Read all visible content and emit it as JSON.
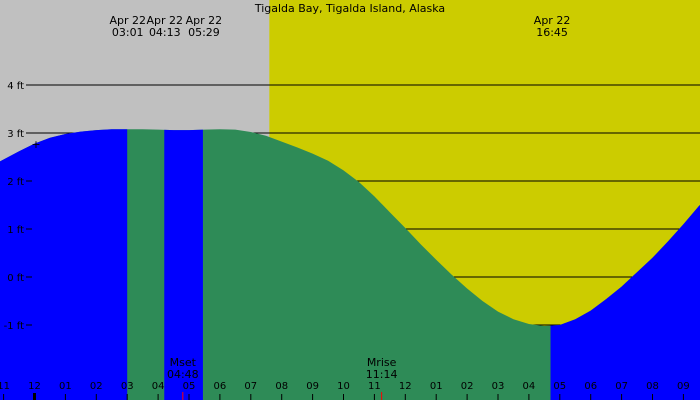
{
  "chart_data": {
    "type": "area",
    "title": "Tigalda Bay, Tigalda Island, Alaska",
    "ylim": [
      -2.0,
      5.0
    ],
    "y_ticks": [
      {
        "value": 4,
        "label": "4 ft"
      },
      {
        "value": 3,
        "label": "3 ft"
      },
      {
        "value": 2,
        "label": "2 ft"
      },
      {
        "value": 1,
        "label": "1 ft"
      },
      {
        "value": 0,
        "label": "0 ft"
      },
      {
        "value": -1,
        "label": "-1 ft"
      }
    ],
    "x_ticks": [
      "11",
      "12",
      "01",
      "02",
      "03",
      "04",
      "05",
      "06",
      "07",
      "08",
      "09",
      "10",
      "11",
      "12",
      "01",
      "02",
      "03",
      "04",
      "05",
      "06",
      "07",
      "08",
      "09"
    ],
    "tide_series": {
      "name": "",
      "x": [
        -1.2,
        -0.5,
        0.0,
        0.5,
        1.0,
        1.5,
        2.0,
        2.5,
        3.0,
        3.5,
        4.0,
        4.5,
        5.0,
        5.5,
        6.0,
        6.5,
        7.0,
        7.5,
        8.0,
        8.5,
        9.0,
        9.5,
        10.0,
        10.5,
        11.0,
        11.5,
        12.0,
        12.5,
        13.0,
        13.5,
        14.0,
        14.5,
        15.0,
        15.5,
        16.0,
        16.5,
        17.0,
        17.5,
        18.0,
        18.5,
        19.0,
        19.5,
        20.0,
        20.5,
        21.0,
        21.5,
        21.9
      ],
      "y": [
        2.38,
        2.62,
        2.78,
        2.9,
        2.98,
        3.03,
        3.06,
        3.08,
        3.08,
        3.08,
        3.07,
        3.06,
        3.06,
        3.07,
        3.08,
        3.07,
        3.02,
        2.94,
        2.82,
        2.7,
        2.57,
        2.42,
        2.22,
        1.98,
        1.68,
        1.35,
        1.02,
        0.68,
        0.36,
        0.05,
        -0.24,
        -0.5,
        -0.72,
        -0.88,
        -0.98,
        -1.02,
        -1.0,
        -0.88,
        -0.7,
        -0.46,
        -0.2,
        0.1,
        0.4,
        0.74,
        1.1,
        1.48,
        1.7
      ]
    },
    "night_end_hour": 7.6,
    "night_shades": [
      [
        -1.2,
        3.0
      ],
      [
        4.2,
        5.45
      ]
    ],
    "events": [
      {
        "date": "Apr 22",
        "time": "03:01"
      },
      {
        "date": "Apr 22",
        "time": "04:13"
      },
      {
        "date": "Apr 22",
        "time": "05:29"
      },
      {
        "date": "Apr 22",
        "time": "16:45"
      }
    ],
    "moon": [
      {
        "label": "Mset",
        "time": "04:48"
      },
      {
        "label": "Mrise",
        "time": "11:14"
      }
    ],
    "colors": {
      "night_bg": "#c0c0c0",
      "day_bg": "#cccc00",
      "night_tide": "#0000ff",
      "day_tide": "#2e8b57",
      "grid": "#000000",
      "moon_marker": "#ff0000"
    }
  }
}
